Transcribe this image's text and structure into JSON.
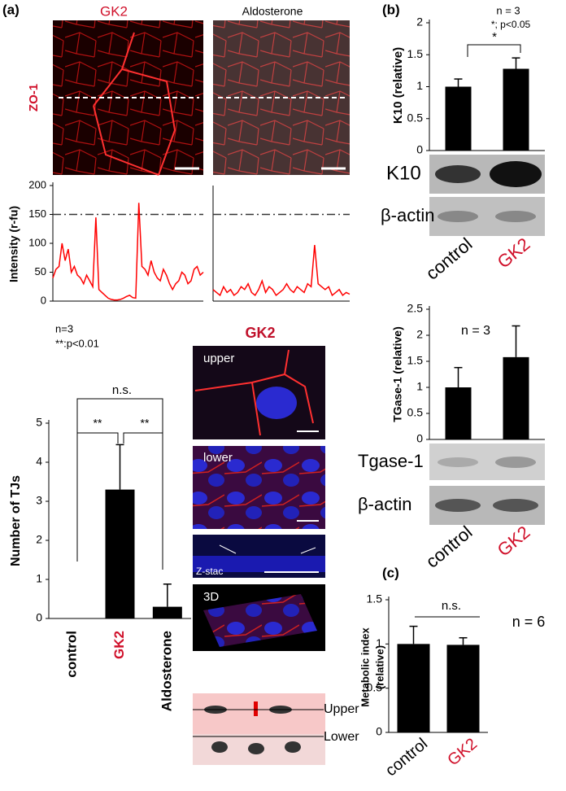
{
  "panel_labels": [
    "(a)",
    "(b)",
    "(c)"
  ],
  "micrographs": {
    "columns": [
      "GK2",
      "Aldosterone"
    ],
    "row_label": "ZO-1"
  },
  "confocal": {
    "title": "GK2",
    "panels": [
      "upper",
      "lower",
      "Z-stac",
      "3D"
    ]
  },
  "schematic": {
    "labels": [
      "Upper",
      "Lower"
    ]
  },
  "blots": [
    {
      "labels": [
        "K10",
        "β-actin"
      ]
    },
    {
      "labels": [
        "Tgase-1",
        "β-actin"
      ]
    }
  ],
  "chart_data": [
    {
      "type": "line",
      "y_label": "Intensity (r-fu)",
      "color": "#ff0000",
      "values": [
        40,
        55,
        60,
        100,
        70,
        90,
        50,
        60,
        45,
        40,
        30,
        45,
        35,
        25,
        145,
        20,
        15,
        10,
        5,
        3,
        2,
        2,
        3,
        5,
        8,
        10,
        6,
        5,
        170,
        60,
        55,
        45,
        70,
        50,
        40,
        35,
        55,
        45,
        30,
        20,
        30,
        35,
        50,
        45,
        30,
        35,
        55,
        60,
        45,
        50
      ],
      "ylim": [
        0,
        200
      ],
      "yticks": [
        0,
        50,
        100,
        150,
        200
      ],
      "reference_line": 150
    },
    {
      "type": "line",
      "color": "#ff0000",
      "values": [
        20,
        15,
        10,
        25,
        15,
        20,
        10,
        15,
        25,
        20,
        30,
        15,
        10,
        20,
        35,
        15,
        25,
        20,
        10,
        15,
        20,
        30,
        20,
        15,
        25,
        20,
        15,
        30,
        25,
        97,
        30,
        25,
        20,
        25,
        10,
        15,
        20,
        10,
        15,
        12
      ],
      "ylim": [
        0,
        200
      ],
      "reference_line": 150
    },
    {
      "type": "bar",
      "y_label": "Number of TJs",
      "categories": [
        "control",
        "GK2",
        "Aldosterone"
      ],
      "category_colors": [
        "#000000",
        "#d0102a",
        "#000000"
      ],
      "color": "#000000",
      "values": [
        0,
        3.3,
        0.3
      ],
      "errors": [
        0,
        1.15,
        0.58
      ],
      "ylim": [
        0,
        5
      ],
      "yticks": [
        0,
        1,
        2,
        3,
        4,
        5
      ],
      "annotations": [
        "n=3",
        "**:p<0.01",
        "n.s.",
        "**",
        "**"
      ]
    },
    {
      "type": "bar",
      "y_label": "K10 (relative)",
      "categories": [
        "control",
        "GK2"
      ],
      "category_colors": [
        "#000000",
        "#d0102a"
      ],
      "color": "#000000",
      "values": [
        1,
        1.28
      ],
      "errors": [
        0.12,
        0.17
      ],
      "ylim": [
        0,
        2
      ],
      "yticks": [
        0,
        0.5,
        1,
        1.5,
        2
      ],
      "annotations": [
        "n = 3",
        "*; p<0.05",
        "*"
      ]
    },
    {
      "type": "bar",
      "y_label": "TGase-1 (relative)",
      "categories": [
        "control",
        "GK2"
      ],
      "category_colors": [
        "#000000",
        "#d0102a"
      ],
      "color": "#000000",
      "values": [
        1,
        1.58
      ],
      "errors": [
        0.38,
        0.6
      ],
      "ylim": [
        0,
        2.5
      ],
      "yticks": [
        0,
        0.5,
        1,
        1.5,
        2,
        2.5
      ],
      "annotations": [
        "n = 3"
      ]
    },
    {
      "type": "bar",
      "y_label": [
        "Metabolic index",
        "(relative)"
      ],
      "categories": [
        "control",
        "GK2"
      ],
      "category_colors": [
        "#000000",
        "#d0102a"
      ],
      "color": "#000000",
      "values": [
        1,
        0.99
      ],
      "errors": [
        0.2,
        0.08
      ],
      "ylim": [
        0,
        1.5
      ],
      "yticks": [
        0,
        0.5,
        1,
        1.5
      ],
      "annotations": [
        "n.s.",
        "n = 6"
      ]
    }
  ]
}
